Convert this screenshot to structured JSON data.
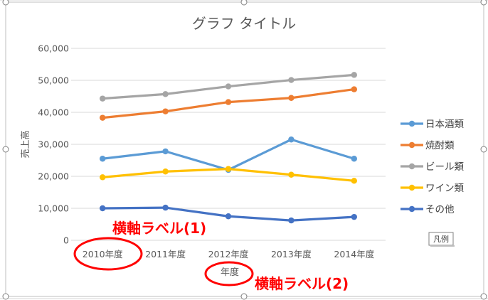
{
  "chart_data": {
    "type": "line",
    "title": "グラフ タイトル",
    "xlabel": "年度",
    "ylabel": "売上高",
    "categories": [
      "2010年度",
      "2011年度",
      "2012年度",
      "2013年度",
      "2014年度"
    ],
    "ylim": [
      0,
      60000
    ],
    "yticks": [
      "0",
      "10,000",
      "20,000",
      "30,000",
      "40,000",
      "50,000",
      "60,000"
    ],
    "grid": true,
    "legend_position": "right",
    "series": [
      {
        "name": "日本酒類",
        "color": "#5b9bd5",
        "values": [
          25500,
          27800,
          22000,
          31500,
          25500
        ]
      },
      {
        "name": "焼酎類",
        "color": "#ed7d31",
        "values": [
          38300,
          40300,
          43200,
          44500,
          47200
        ]
      },
      {
        "name": "ビール類",
        "color": "#a5a5a5",
        "values": [
          44300,
          45700,
          48100,
          50100,
          51700
        ]
      },
      {
        "name": "ワイン類",
        "color": "#ffc000",
        "values": [
          19700,
          21500,
          22300,
          20500,
          18600
        ]
      },
      {
        "name": "その他",
        "color": "#4472c4",
        "values": [
          10000,
          10200,
          7500,
          6200,
          7300
        ]
      }
    ]
  },
  "annotations": {
    "label1": "横軸ラベル(1)",
    "label2": "横軸ラベル(2)"
  },
  "tooltip": "凡例",
  "colors": {
    "annotation": "#ff0000",
    "gridline": "#d9d9d9",
    "text": "#595959"
  }
}
